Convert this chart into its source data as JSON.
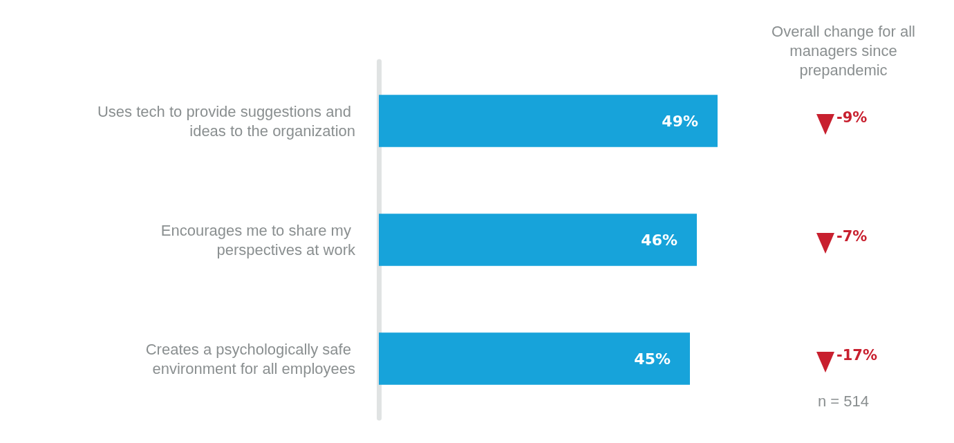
{
  "chart_data": {
    "type": "bar",
    "orientation": "horizontal",
    "categories": [
      "Uses tech to provide suggestions and ideas to the organization",
      "Encourages me to share my perspectives at work",
      "Creates a psychologically safe environment for all employees"
    ],
    "values": [
      49,
      46,
      45
    ],
    "value_labels": [
      "49%",
      "46%",
      "45%"
    ],
    "color": "#17a3da",
    "grid": false,
    "tick_labels": "y",
    "annotations": [
      "Overall change for all managers since prepandemic",
      "-9%",
      "-7%",
      "-17%",
      "n = 514"
    ]
  }
}
